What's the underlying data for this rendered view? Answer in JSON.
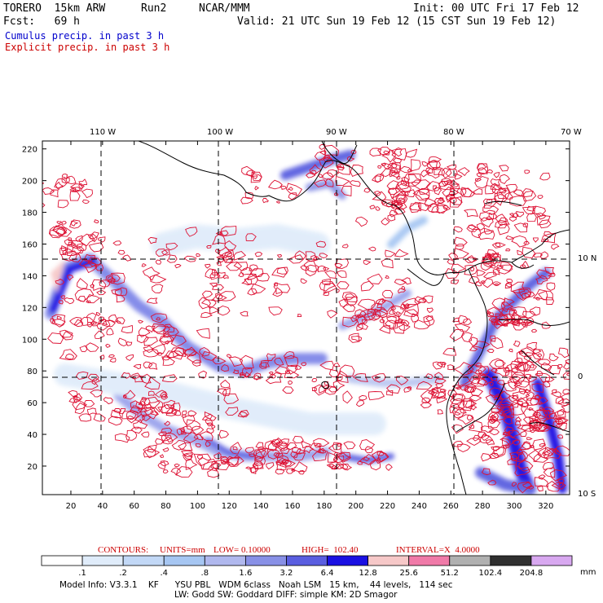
{
  "header": {
    "model": "TORERO  15km ARW",
    "run": "Run2",
    "center": "NCAR/MMM",
    "init": "Init: 00 UTC Fri 17 Feb 12",
    "fcst": "Fcst:   69 h",
    "valid": "Valid: 21 UTC Sun 19 Feb 12 (15 CST Sun 19 Feb 12)"
  },
  "fields": {
    "cumulus": "Cumulus precip. in past 3 h",
    "explicit": "Explicit precip. in past 3 h"
  },
  "colors": {
    "cumulus": "#0000cc",
    "explicit": "#cc0000",
    "contour": "#dd1133",
    "coast": "#000000"
  },
  "axes": {
    "x_ticks": [
      "20",
      "40",
      "60",
      "80",
      "100",
      "120",
      "140",
      "160",
      "180",
      "200",
      "220",
      "240",
      "260",
      "280",
      "300",
      "320"
    ],
    "y_ticks": [
      "20",
      "40",
      "60",
      "80",
      "100",
      "120",
      "140",
      "160",
      "180",
      "200",
      "220"
    ],
    "lon_labels": [
      "110 W",
      "100 W",
      "90 W",
      "80 W",
      "70 W"
    ],
    "lat_labels": [
      "10 N",
      "0",
      "10 S"
    ]
  },
  "contours": {
    "label": "CONTOURS:",
    "units": "UNITS=mm",
    "low": "LOW= 0.10000",
    "high": "HIGH=  102.40",
    "interval": "INTERVAL=X  4.0000"
  },
  "colorbar": {
    "labels": [
      ".1",
      ".2",
      ".4",
      ".8",
      "1.6",
      "3.2",
      "6.4",
      "12.8",
      "25.6",
      "51.2",
      "102.4",
      "204.8"
    ],
    "colors": [
      "#ffffff",
      "#e0ecfa",
      "#c2d8f6",
      "#a6c6f2",
      "#b0b8ee",
      "#8890e6",
      "#5a5ee0",
      "#1a10e2",
      "#f6c8c8",
      "#f07aa8",
      "#b0b0b0",
      "#303030",
      "#d8a8f0"
    ],
    "unit": "mm"
  },
  "model_info": {
    "line1": "Model Info: V3.3.1    KF      YSU PBL   WDM 6class   Noah LSM   15 km,    44 levels,   114 sec",
    "line2": "LW: Godd SW: Goddard DIFF: simple KM: 2D Smagor"
  }
}
